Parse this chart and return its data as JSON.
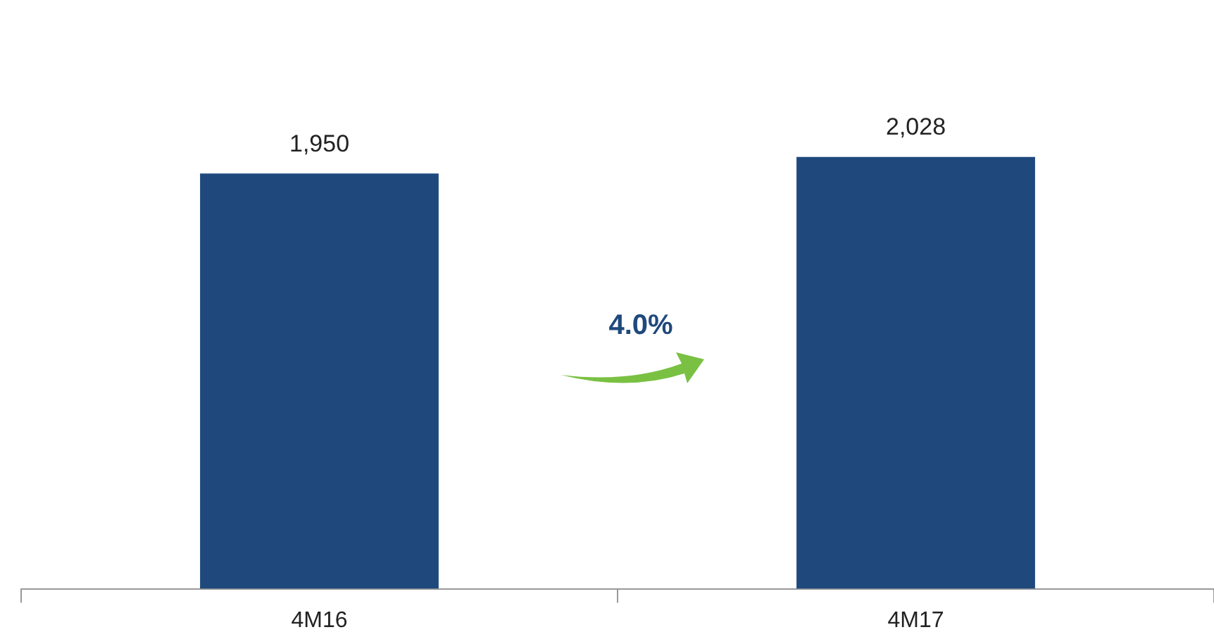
{
  "chart_data": {
    "type": "bar",
    "categories": [
      "4M16",
      "4M17"
    ],
    "values": [
      1950,
      2028
    ],
    "value_labels": [
      "1,950",
      "2,028"
    ],
    "color": "#1f497d",
    "tick_labels": "x",
    "grid": false,
    "legend": false,
    "annotations": [
      "4.0%"
    ]
  }
}
